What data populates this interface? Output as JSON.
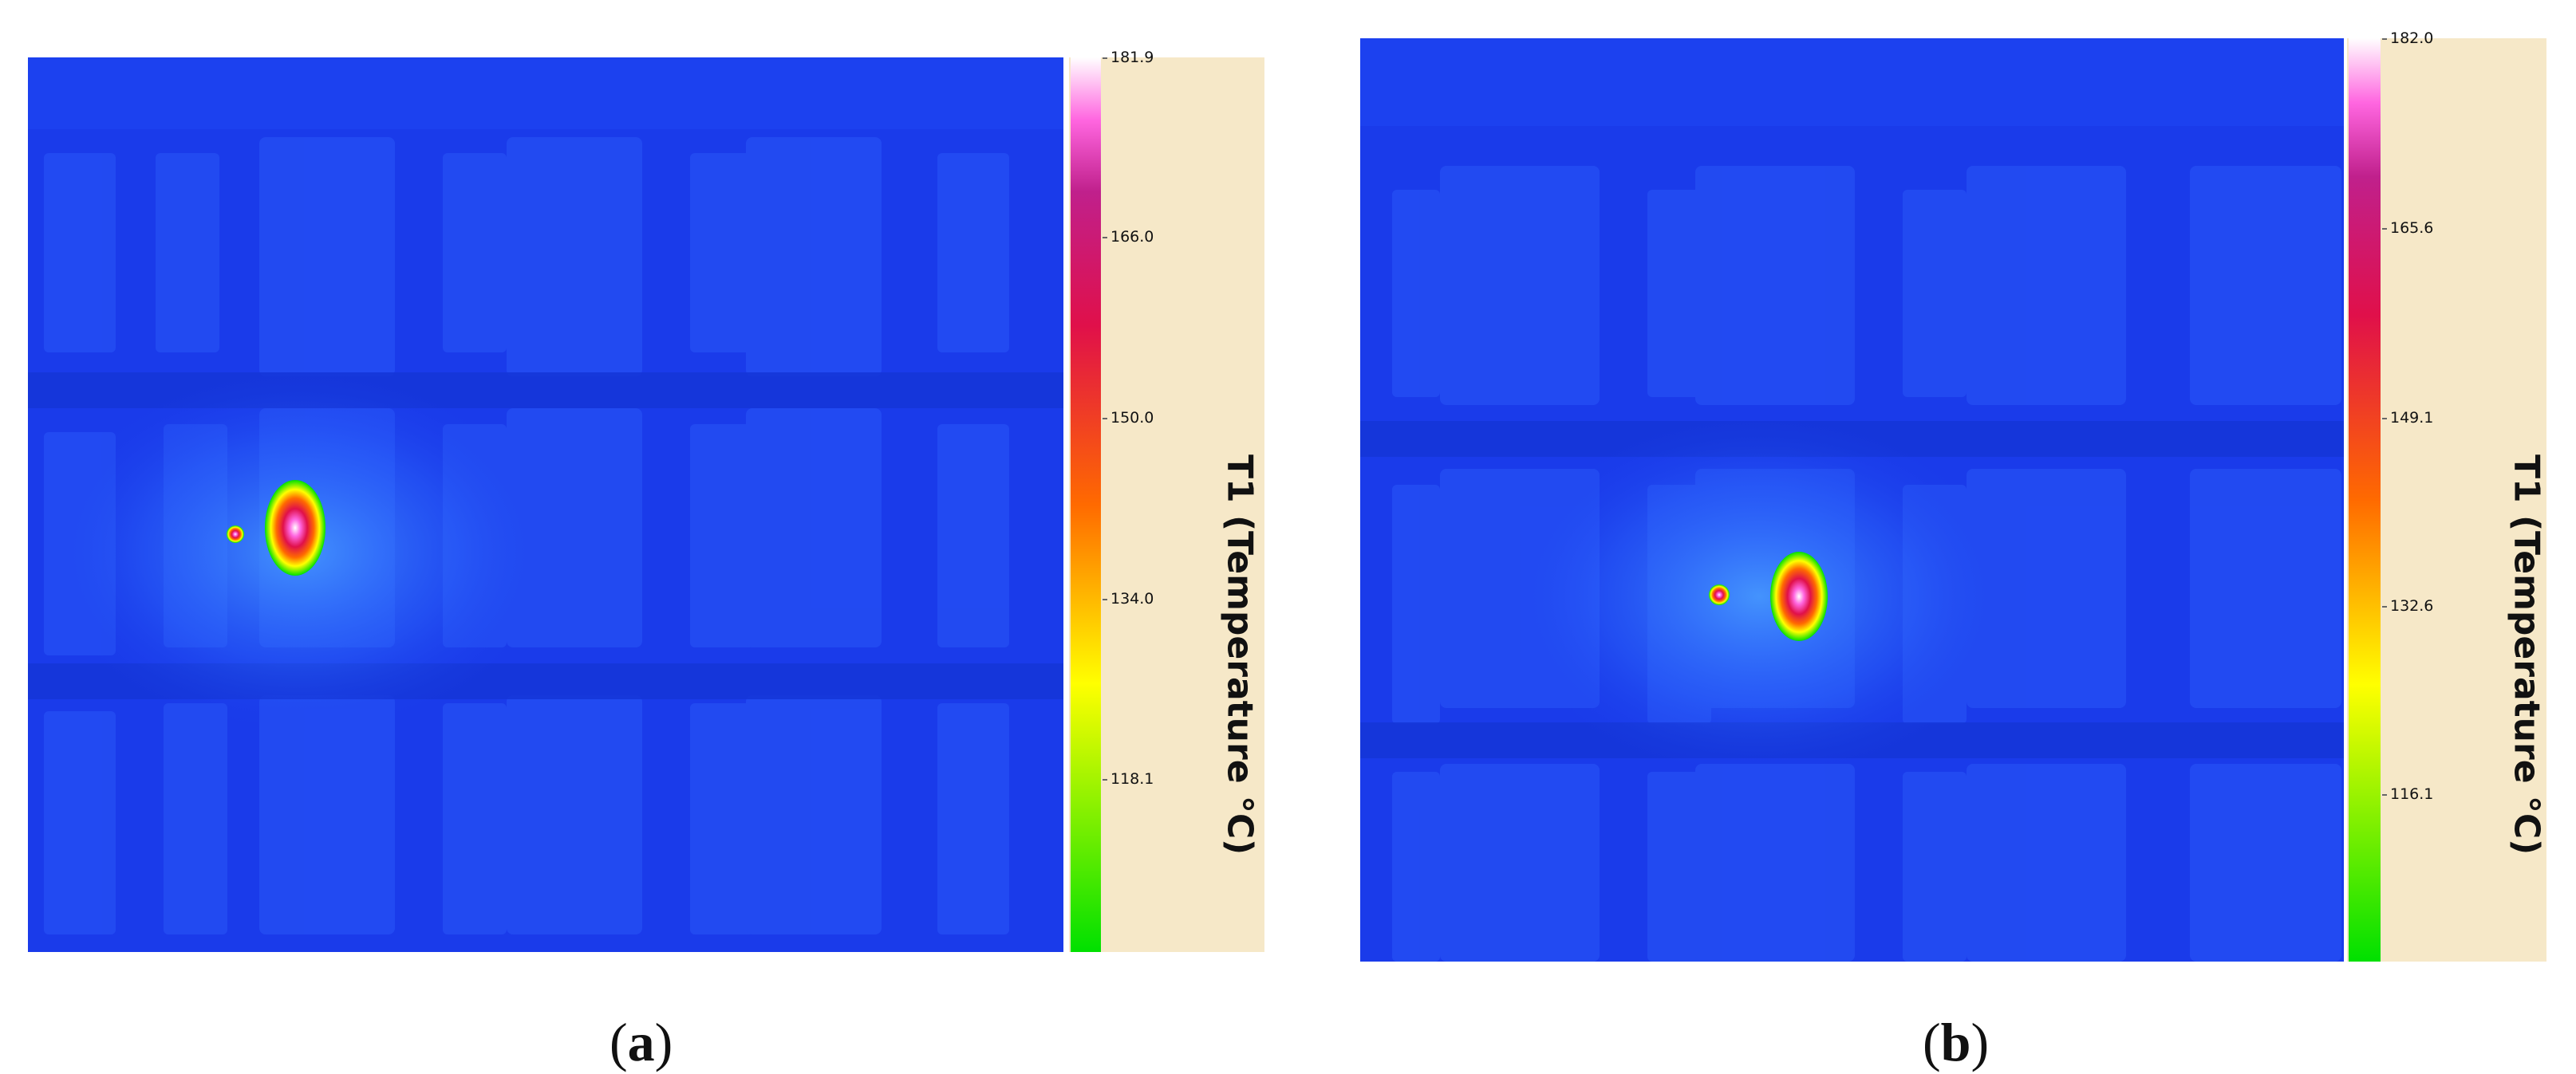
{
  "panels": [
    {
      "caption_open": "(",
      "caption_letter": "a",
      "caption_close": ")",
      "colorbar_title": "T1 (Temperature °C)",
      "ticks": [
        "181.9",
        "166.0",
        "150.0",
        "134.0",
        "118.1"
      ],
      "tick_values": [
        181.9,
        166.0,
        150.0,
        134.0,
        118.1
      ]
    },
    {
      "caption_open": "(",
      "caption_letter": "b",
      "caption_close": ")",
      "colorbar_title": "T1 (Temperature °C)",
      "ticks": [
        "182.0",
        "165.6",
        "149.1",
        "132.6",
        "116.1"
      ],
      "tick_values": [
        182.0,
        165.6,
        149.1,
        132.6,
        116.1
      ]
    }
  ],
  "colors": {
    "scale": [
      "#00e000",
      "#ffff00",
      "#ff6a00",
      "#e0104a",
      "#c0208c",
      "#ff66e0",
      "#ffffff"
    ],
    "background_blue": "#1a3bea",
    "colorbar_panel": "#f6e8c8"
  }
}
